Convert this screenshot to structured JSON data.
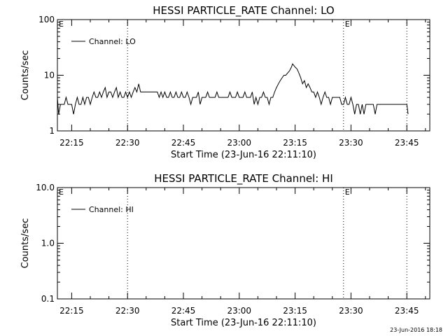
{
  "footer_stamp": "23-Jun-2016 18:18",
  "chart_data": [
    {
      "type": "line",
      "title": "HESSI PARTICLE_RATE Channel: LO",
      "xlabel": "Start Time (23-Jun-16 22:11:10)",
      "ylabel": "Counts/sec",
      "yscale": "log",
      "ylim": [
        1,
        100
      ],
      "yticks": [
        1,
        10,
        100
      ],
      "ytick_labels": [
        "1",
        "10",
        "100"
      ],
      "xlim": [
        "22:11:10",
        "23:51:10"
      ],
      "xticks": [
        "22:15",
        "22:30",
        "22:45",
        "23:00",
        "23:15",
        "23:30",
        "23:45"
      ],
      "vlines": [
        "22:30",
        "23:28",
        "23:45"
      ],
      "event_marks": [
        {
          "time": "22:11:10",
          "label": "E"
        },
        {
          "time": "23:28",
          "label": "E"
        }
      ],
      "legend": {
        "placement": "top-left",
        "entries": [
          "Channel: LO"
        ]
      },
      "grid": false,
      "line_color": "#000000",
      "series": [
        {
          "name": "Channel: LO",
          "points": [
            [
              "22:11:10",
              4
            ],
            [
              "22:11:30",
              2
            ],
            [
              "22:12:00",
              3
            ],
            [
              "22:12:30",
              3
            ],
            [
              "22:13:00",
              3
            ],
            [
              "22:13:30",
              4
            ],
            [
              "22:14:00",
              3
            ],
            [
              "22:14:30",
              3
            ],
            [
              "22:15:00",
              3
            ],
            [
              "22:15:30",
              2
            ],
            [
              "22:16:00",
              3
            ],
            [
              "22:16:30",
              4
            ],
            [
              "22:17:00",
              3
            ],
            [
              "22:17:30",
              3
            ],
            [
              "22:18:00",
              4
            ],
            [
              "22:18:30",
              3
            ],
            [
              "22:19:00",
              4
            ],
            [
              "22:19:30",
              4
            ],
            [
              "22:20:00",
              3
            ],
            [
              "22:20:30",
              4
            ],
            [
              "22:21:00",
              5
            ],
            [
              "22:21:30",
              4
            ],
            [
              "22:22:00",
              4
            ],
            [
              "22:22:30",
              5
            ],
            [
              "22:23:00",
              4
            ],
            [
              "22:23:30",
              5
            ],
            [
              "22:24:00",
              6
            ],
            [
              "22:24:30",
              4
            ],
            [
              "22:25:00",
              5
            ],
            [
              "22:25:30",
              5
            ],
            [
              "22:26:00",
              4
            ],
            [
              "22:26:30",
              5
            ],
            [
              "22:27:00",
              6
            ],
            [
              "22:27:30",
              4
            ],
            [
              "22:28:00",
              5
            ],
            [
              "22:28:30",
              4
            ],
            [
              "22:29:00",
              4
            ],
            [
              "22:29:30",
              5
            ],
            [
              "22:30:00",
              4
            ],
            [
              "22:30:30",
              5
            ],
            [
              "22:31:00",
              4
            ],
            [
              "22:31:30",
              5
            ],
            [
              "22:32:00",
              6
            ],
            [
              "22:32:30",
              5
            ],
            [
              "22:33:00",
              7
            ],
            [
              "22:33:30",
              5
            ],
            [
              "22:34:00",
              5
            ],
            [
              "22:35:00",
              5
            ],
            [
              "22:36:00",
              5
            ],
            [
              "22:37:00",
              5
            ],
            [
              "22:38:00",
              5
            ],
            [
              "22:38:30",
              4
            ],
            [
              "22:39:00",
              5
            ],
            [
              "22:39:30",
              4
            ],
            [
              "22:40:00",
              5
            ],
            [
              "22:40:30",
              4
            ],
            [
              "22:41:00",
              4
            ],
            [
              "22:41:30",
              5
            ],
            [
              "22:42:00",
              4
            ],
            [
              "22:42:30",
              4
            ],
            [
              "22:43:00",
              5
            ],
            [
              "22:43:30",
              4
            ],
            [
              "22:44:00",
              4
            ],
            [
              "22:44:30",
              5
            ],
            [
              "22:45:00",
              4
            ],
            [
              "22:45:30",
              4
            ],
            [
              "22:46:00",
              5
            ],
            [
              "22:46:30",
              4
            ],
            [
              "22:47:00",
              3
            ],
            [
              "22:47:30",
              4
            ],
            [
              "22:48:00",
              4
            ],
            [
              "22:48:30",
              4
            ],
            [
              "22:49:00",
              5
            ],
            [
              "22:49:30",
              3
            ],
            [
              "22:50:00",
              4
            ],
            [
              "22:50:30",
              4
            ],
            [
              "22:51:00",
              4
            ],
            [
              "22:51:30",
              5
            ],
            [
              "22:52:00",
              4
            ],
            [
              "22:52:30",
              4
            ],
            [
              "22:53:00",
              4
            ],
            [
              "22:53:30",
              4
            ],
            [
              "22:54:00",
              5
            ],
            [
              "22:54:30",
              4
            ],
            [
              "22:55:00",
              4
            ],
            [
              "22:55:30",
              4
            ],
            [
              "22:56:00",
              4
            ],
            [
              "22:56:30",
              4
            ],
            [
              "22:57:00",
              4
            ],
            [
              "22:57:30",
              5
            ],
            [
              "22:58:00",
              4
            ],
            [
              "22:58:30",
              4
            ],
            [
              "22:59:00",
              4
            ],
            [
              "22:59:30",
              5
            ],
            [
              "23:00:00",
              4
            ],
            [
              "23:00:30",
              4
            ],
            [
              "23:01:00",
              4
            ],
            [
              "23:01:30",
              5
            ],
            [
              "23:02:00",
              4
            ],
            [
              "23:02:30",
              4
            ],
            [
              "23:03:00",
              4
            ],
            [
              "23:03:30",
              5
            ],
            [
              "23:04:00",
              3
            ],
            [
              "23:04:30",
              4
            ],
            [
              "23:05:00",
              3
            ],
            [
              "23:05:30",
              4
            ],
            [
              "23:06:00",
              4
            ],
            [
              "23:06:30",
              5
            ],
            [
              "23:07:00",
              4
            ],
            [
              "23:07:30",
              4
            ],
            [
              "23:08:00",
              3
            ],
            [
              "23:08:30",
              4
            ],
            [
              "23:09:00",
              4
            ],
            [
              "23:09:30",
              5
            ],
            [
              "23:10:00",
              6
            ],
            [
              "23:10:30",
              7
            ],
            [
              "23:11:00",
              8
            ],
            [
              "23:11:30",
              9
            ],
            [
              "23:12:00",
              10
            ],
            [
              "23:12:30",
              10
            ],
            [
              "23:13:00",
              11
            ],
            [
              "23:13:30",
              12
            ],
            [
              "23:14:00",
              14
            ],
            [
              "23:14:20",
              16
            ],
            [
              "23:14:40",
              15
            ],
            [
              "23:15:00",
              14
            ],
            [
              "23:15:30",
              13
            ],
            [
              "23:16:00",
              11
            ],
            [
              "23:16:30",
              9
            ],
            [
              "23:17:00",
              7
            ],
            [
              "23:17:30",
              8
            ],
            [
              "23:18:00",
              6
            ],
            [
              "23:18:30",
              7
            ],
            [
              "23:19:00",
              6
            ],
            [
              "23:19:30",
              5
            ],
            [
              "23:20:00",
              5
            ],
            [
              "23:20:30",
              4
            ],
            [
              "23:21:00",
              5
            ],
            [
              "23:21:30",
              4
            ],
            [
              "23:22:00",
              3
            ],
            [
              "23:22:30",
              4
            ],
            [
              "23:23:00",
              5
            ],
            [
              "23:23:30",
              4
            ],
            [
              "23:24:00",
              4
            ],
            [
              "23:24:30",
              3
            ],
            [
              "23:25:00",
              4
            ],
            [
              "23:25:30",
              4
            ],
            [
              "23:26:00",
              4
            ],
            [
              "23:26:30",
              4
            ],
            [
              "23:27:00",
              4
            ],
            [
              "23:27:30",
              3
            ],
            [
              "23:28:00",
              3
            ],
            [
              "23:28:30",
              4
            ],
            [
              "23:29:00",
              3
            ],
            [
              "23:29:30",
              3
            ],
            [
              "23:30:00",
              4
            ],
            [
              "23:30:30",
              3
            ],
            [
              "23:31:00",
              2
            ],
            [
              "23:31:30",
              3
            ],
            [
              "23:32:00",
              3
            ],
            [
              "23:32:30",
              2
            ],
            [
              "23:33:00",
              3
            ],
            [
              "23:33:30",
              2
            ],
            [
              "23:34:00",
              3
            ],
            [
              "23:35:00",
              3
            ],
            [
              "23:36:00",
              3
            ],
            [
              "23:36:30",
              2
            ],
            [
              "23:37:00",
              3
            ],
            [
              "23:38:00",
              3
            ],
            [
              "23:39:00",
              3
            ],
            [
              "23:40:00",
              3
            ],
            [
              "23:41:00",
              3
            ],
            [
              "23:42:00",
              3
            ],
            [
              "23:43:00",
              3
            ],
            [
              "23:44:00",
              3
            ],
            [
              "23:45:00",
              3
            ],
            [
              "23:45:20",
              2
            ]
          ]
        }
      ]
    },
    {
      "type": "line",
      "title": "HESSI PARTICLE_RATE Channel: HI",
      "xlabel": "Start Time (23-Jun-16 22:11:10)",
      "ylabel": "Counts/sec",
      "yscale": "log",
      "ylim": [
        0.1,
        10
      ],
      "yticks": [
        0.1,
        1,
        10
      ],
      "ytick_labels": [
        "0.1",
        "1.0",
        "10.0"
      ],
      "xlim": [
        "22:11:10",
        "23:51:10"
      ],
      "xticks": [
        "22:15",
        "22:30",
        "22:45",
        "23:00",
        "23:15",
        "23:30",
        "23:45"
      ],
      "vlines": [
        "22:30",
        "23:28",
        "23:45"
      ],
      "event_marks": [
        {
          "time": "22:11:10",
          "label": "E"
        },
        {
          "time": "23:28",
          "label": "E"
        }
      ],
      "legend": {
        "placement": "top-left",
        "entries": [
          "Channel: HI"
        ]
      },
      "grid": false,
      "line_color": "#000000",
      "series": [
        {
          "name": "Channel: HI",
          "points": []
        }
      ]
    }
  ]
}
